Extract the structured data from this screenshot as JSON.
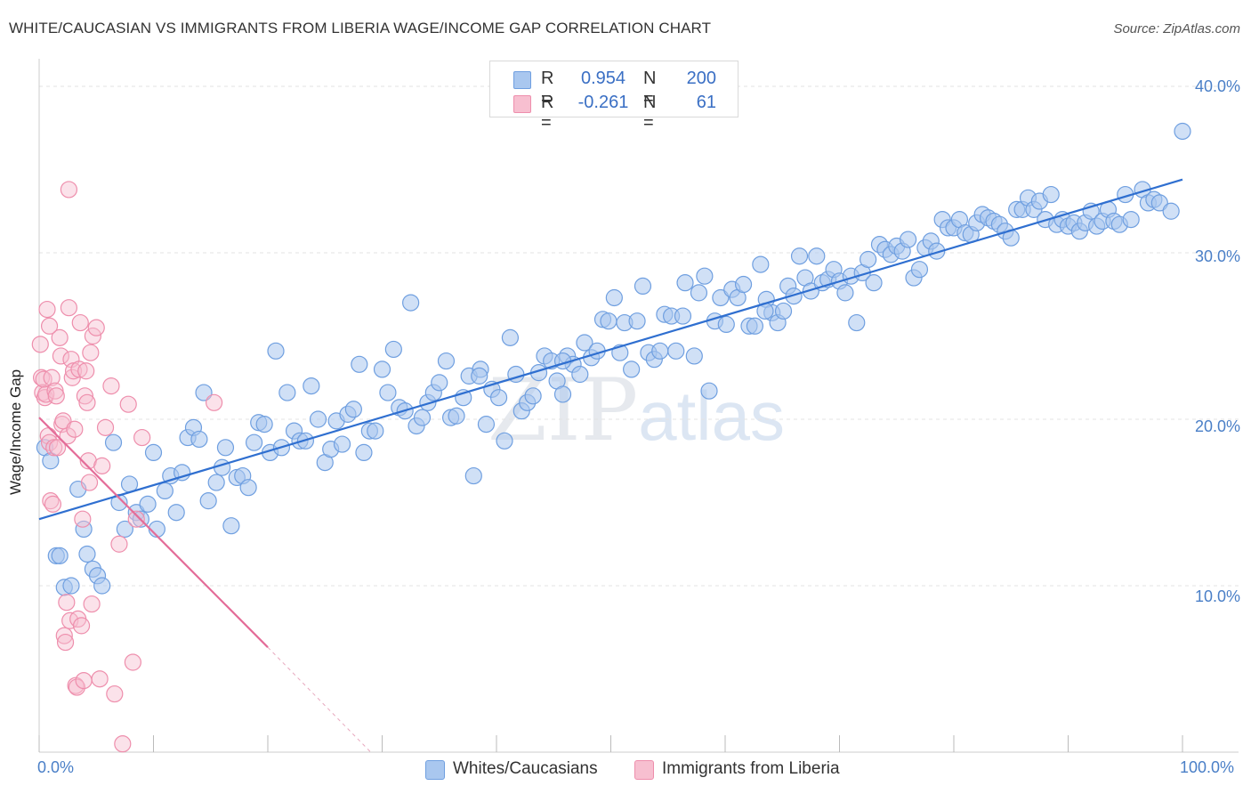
{
  "title": "WHITE/CAUCASIAN VS IMMIGRANTS FROM LIBERIA WAGE/INCOME GAP CORRELATION CHART",
  "source": "Source: ZipAtlas.com",
  "watermark": {
    "zip": "ZIP",
    "atlas": "atlas"
  },
  "legend": {
    "rows": [
      {
        "r_label": "R =",
        "r_value": "0.954",
        "n_label": "N =",
        "n_value": "200",
        "fill": "#a9c7ef",
        "stroke": "#6f9fe0",
        "text_color": "#3a6fc4"
      },
      {
        "r_label": "R =",
        "r_value": "-0.261",
        "n_label": "N =",
        "n_value": "61",
        "fill": "#f7bfd0",
        "stroke": "#ee8eac",
        "text_color": "#3a6fc4"
      }
    ]
  },
  "bottom_legend": [
    {
      "label": "Whites/Caucasians",
      "fill": "#a9c7ef",
      "stroke": "#6f9fe0"
    },
    {
      "label": "Immigrants from Liberia",
      "fill": "#f7bfd0",
      "stroke": "#ee8eac"
    }
  ],
  "axes": {
    "y_label": "Wage/Income Gap",
    "x_ticks": [
      "0.0%",
      "100.0%"
    ],
    "y_ticks": [
      "40.0%",
      "30.0%",
      "20.0%",
      "10.0%"
    ]
  },
  "colors": {
    "blue_line": "#2f6fd0",
    "pink_line": "#e46c98",
    "blue_dot": "#a9c7ef",
    "pink_dot": "#f7bfd0",
    "grid": "#e3e3e3"
  },
  "chart_data": {
    "type": "scatter",
    "title": "WHITE/CAUCASIAN VS IMMIGRANTS FROM LIBERIA WAGE/INCOME GAP CORRELATION CHART",
    "xlabel": "",
    "ylabel": "Wage/Income Gap",
    "xlim": [
      0,
      100
    ],
    "ylim": [
      0,
      40
    ],
    "y_gridlines": [
      10,
      20,
      30,
      40
    ],
    "series": [
      {
        "name": "Whites/Caucasians",
        "r": 0.954,
        "n": 200,
        "trend": {
          "x0": 0,
          "y0": 14.0,
          "x1": 100,
          "y1": 34.4
        },
        "points": [
          [
            0.5,
            18.3
          ],
          [
            1.0,
            17.5
          ],
          [
            1.5,
            11.8
          ],
          [
            1.8,
            11.8
          ],
          [
            2.2,
            9.9
          ],
          [
            2.8,
            10.0
          ],
          [
            3.4,
            15.8
          ],
          [
            3.9,
            13.4
          ],
          [
            4.2,
            11.9
          ],
          [
            4.7,
            11.0
          ],
          [
            5.1,
            10.6
          ],
          [
            5.5,
            10.0
          ],
          [
            6.5,
            18.6
          ],
          [
            7.0,
            15.0
          ],
          [
            7.5,
            13.4
          ],
          [
            7.9,
            16.1
          ],
          [
            8.5,
            14.4
          ],
          [
            8.9,
            14.0
          ],
          [
            9.5,
            14.9
          ],
          [
            10.0,
            18.0
          ],
          [
            10.3,
            13.4
          ],
          [
            11.0,
            15.7
          ],
          [
            11.5,
            16.6
          ],
          [
            12.0,
            14.4
          ],
          [
            12.5,
            16.8
          ],
          [
            13.0,
            18.9
          ],
          [
            13.5,
            19.5
          ],
          [
            14.0,
            18.8
          ],
          [
            14.4,
            21.6
          ],
          [
            14.8,
            15.1
          ],
          [
            15.5,
            16.2
          ],
          [
            16.0,
            17.1
          ],
          [
            16.3,
            18.3
          ],
          [
            16.8,
            13.6
          ],
          [
            17.3,
            16.5
          ],
          [
            17.8,
            16.6
          ],
          [
            18.3,
            15.9
          ],
          [
            18.8,
            18.6
          ],
          [
            19.2,
            19.8
          ],
          [
            19.7,
            19.7
          ],
          [
            20.2,
            18.0
          ],
          [
            20.7,
            24.1
          ],
          [
            21.2,
            18.3
          ],
          [
            21.7,
            21.6
          ],
          [
            22.3,
            19.3
          ],
          [
            22.8,
            18.7
          ],
          [
            23.3,
            18.7
          ],
          [
            23.8,
            22.0
          ],
          [
            24.4,
            20.0
          ],
          [
            25.0,
            17.4
          ],
          [
            25.5,
            18.2
          ],
          [
            26.0,
            19.9
          ],
          [
            26.5,
            18.5
          ],
          [
            27.0,
            20.3
          ],
          [
            27.5,
            20.6
          ],
          [
            28.0,
            23.3
          ],
          [
            28.4,
            18.0
          ],
          [
            28.9,
            19.3
          ],
          [
            29.4,
            19.3
          ],
          [
            30.0,
            23.0
          ],
          [
            30.5,
            21.6
          ],
          [
            31.0,
            24.2
          ],
          [
            31.5,
            20.7
          ],
          [
            32.0,
            20.5
          ],
          [
            32.5,
            27.0
          ],
          [
            33.0,
            19.6
          ],
          [
            33.5,
            20.1
          ],
          [
            34.0,
            21.0
          ],
          [
            34.5,
            21.6
          ],
          [
            35.0,
            22.2
          ],
          [
            35.6,
            23.5
          ],
          [
            36.0,
            20.1
          ],
          [
            36.5,
            20.2
          ],
          [
            37.1,
            21.3
          ],
          [
            37.6,
            22.6
          ],
          [
            38.0,
            16.6
          ],
          [
            38.6,
            23.0
          ],
          [
            39.1,
            19.7
          ],
          [
            39.6,
            21.8
          ],
          [
            40.2,
            21.3
          ],
          [
            40.7,
            18.7
          ],
          [
            41.2,
            24.9
          ],
          [
            41.7,
            22.7
          ],
          [
            42.2,
            20.5
          ],
          [
            42.7,
            21.0
          ],
          [
            43.2,
            21.4
          ],
          [
            43.7,
            22.8
          ],
          [
            44.2,
            23.8
          ],
          [
            44.8,
            23.5
          ],
          [
            45.3,
            22.3
          ],
          [
            45.8,
            21.5
          ],
          [
            46.2,
            23.8
          ],
          [
            46.7,
            23.3
          ],
          [
            47.3,
            22.7
          ],
          [
            47.7,
            24.6
          ],
          [
            48.3,
            23.7
          ],
          [
            48.8,
            24.1
          ],
          [
            49.3,
            26.0
          ],
          [
            49.8,
            25.9
          ],
          [
            50.3,
            27.3
          ],
          [
            50.8,
            24.0
          ],
          [
            51.2,
            25.8
          ],
          [
            51.8,
            23.0
          ],
          [
            52.3,
            25.9
          ],
          [
            52.8,
            28.0
          ],
          [
            53.3,
            24.0
          ],
          [
            53.8,
            23.6
          ],
          [
            54.3,
            24.1
          ],
          [
            54.7,
            26.3
          ],
          [
            55.3,
            26.2
          ],
          [
            55.7,
            24.1
          ],
          [
            56.5,
            28.2
          ],
          [
            57.3,
            23.8
          ],
          [
            57.7,
            27.6
          ],
          [
            58.2,
            28.6
          ],
          [
            58.6,
            21.7
          ],
          [
            59.1,
            25.9
          ],
          [
            59.6,
            27.3
          ],
          [
            60.1,
            25.7
          ],
          [
            60.6,
            27.8
          ],
          [
            61.1,
            27.3
          ],
          [
            61.6,
            28.1
          ],
          [
            62.1,
            25.6
          ],
          [
            62.6,
            25.6
          ],
          [
            63.1,
            29.3
          ],
          [
            63.6,
            27.2
          ],
          [
            64.1,
            26.4
          ],
          [
            64.6,
            25.8
          ],
          [
            65.1,
            26.5
          ],
          [
            65.5,
            28.0
          ],
          [
            66.0,
            27.4
          ],
          [
            66.5,
            29.8
          ],
          [
            67.0,
            28.5
          ],
          [
            67.5,
            27.7
          ],
          [
            68.0,
            29.8
          ],
          [
            68.5,
            28.2
          ],
          [
            69.0,
            28.4
          ],
          [
            69.5,
            29.0
          ],
          [
            70.0,
            28.3
          ],
          [
            70.5,
            27.6
          ],
          [
            71.0,
            28.6
          ],
          [
            71.5,
            25.8
          ],
          [
            72.0,
            28.8
          ],
          [
            72.5,
            29.6
          ],
          [
            73.0,
            28.2
          ],
          [
            73.5,
            30.5
          ],
          [
            74.0,
            30.2
          ],
          [
            74.5,
            29.9
          ],
          [
            75.0,
            30.4
          ],
          [
            75.5,
            30.1
          ],
          [
            76.0,
            30.8
          ],
          [
            76.5,
            28.5
          ],
          [
            77.0,
            29.0
          ],
          [
            77.5,
            30.3
          ],
          [
            78.0,
            30.7
          ],
          [
            78.5,
            30.1
          ],
          [
            79.0,
            32.0
          ],
          [
            79.5,
            31.5
          ],
          [
            80.0,
            31.5
          ],
          [
            80.5,
            32.0
          ],
          [
            81.0,
            31.2
          ],
          [
            81.5,
            31.1
          ],
          [
            82.0,
            31.8
          ],
          [
            82.5,
            32.3
          ],
          [
            83.0,
            32.1
          ],
          [
            83.5,
            31.9
          ],
          [
            84.0,
            31.7
          ],
          [
            84.5,
            31.3
          ],
          [
            85.0,
            30.9
          ],
          [
            85.5,
            32.6
          ],
          [
            86.0,
            32.6
          ],
          [
            86.5,
            33.3
          ],
          [
            87.0,
            32.6
          ],
          [
            87.5,
            33.1
          ],
          [
            88.0,
            32.0
          ],
          [
            88.5,
            33.5
          ],
          [
            89.0,
            31.7
          ],
          [
            89.5,
            32.0
          ],
          [
            90.0,
            31.6
          ],
          [
            90.5,
            31.8
          ],
          [
            91.0,
            31.3
          ],
          [
            91.5,
            31.8
          ],
          [
            92.0,
            32.5
          ],
          [
            92.5,
            31.6
          ],
          [
            93.0,
            31.9
          ],
          [
            93.5,
            32.6
          ],
          [
            94.0,
            31.9
          ],
          [
            94.5,
            31.7
          ],
          [
            95.0,
            33.5
          ],
          [
            95.5,
            32.0
          ],
          [
            96.5,
            33.8
          ],
          [
            97.0,
            33.0
          ],
          [
            97.5,
            33.2
          ],
          [
            98.0,
            33.0
          ],
          [
            99.0,
            32.5
          ],
          [
            100.0,
            37.3
          ],
          [
            56.3,
            26.2
          ],
          [
            45.8,
            23.5
          ],
          [
            38.5,
            22.6
          ],
          [
            63.5,
            26.5
          ]
        ]
      },
      {
        "name": "Immigrants from Liberia",
        "r": -0.261,
        "n": 61,
        "trend": {
          "x0": 0,
          "y0": 20.1,
          "x1": 20,
          "y1": 6.3,
          "dash_to_x": 29,
          "dash_to_y": 0
        },
        "points": [
          [
            0.1,
            24.5
          ],
          [
            0.2,
            22.5
          ],
          [
            0.3,
            21.6
          ],
          [
            0.4,
            22.4
          ],
          [
            0.5,
            21.3
          ],
          [
            0.6,
            21.5
          ],
          [
            0.7,
            26.6
          ],
          [
            0.8,
            19.0
          ],
          [
            0.9,
            18.6
          ],
          [
            1.0,
            15.1
          ],
          [
            1.1,
            22.5
          ],
          [
            1.2,
            14.9
          ],
          [
            1.3,
            18.3
          ],
          [
            1.4,
            21.7
          ],
          [
            1.5,
            21.4
          ],
          [
            1.6,
            18.3
          ],
          [
            1.8,
            24.9
          ],
          [
            1.9,
            23.8
          ],
          [
            2.0,
            19.7
          ],
          [
            2.1,
            19.9
          ],
          [
            2.2,
            7.0
          ],
          [
            2.3,
            6.6
          ],
          [
            2.4,
            9.0
          ],
          [
            2.5,
            19.0
          ],
          [
            2.6,
            33.8
          ],
          [
            2.7,
            7.9
          ],
          [
            2.8,
            23.6
          ],
          [
            2.9,
            22.5
          ],
          [
            3.0,
            22.9
          ],
          [
            3.1,
            19.4
          ],
          [
            3.2,
            4.0
          ],
          [
            3.3,
            3.9
          ],
          [
            3.4,
            8.0
          ],
          [
            3.5,
            23.0
          ],
          [
            3.6,
            25.8
          ],
          [
            3.7,
            7.6
          ],
          [
            3.8,
            14.0
          ],
          [
            3.9,
            4.3
          ],
          [
            4.0,
            21.4
          ],
          [
            4.1,
            22.9
          ],
          [
            4.2,
            21.0
          ],
          [
            4.3,
            17.5
          ],
          [
            4.4,
            16.2
          ],
          [
            4.5,
            24.0
          ],
          [
            4.6,
            8.9
          ],
          [
            4.7,
            25.0
          ],
          [
            5.0,
            25.5
          ],
          [
            5.3,
            4.4
          ],
          [
            5.5,
            17.2
          ],
          [
            5.8,
            19.5
          ],
          [
            6.3,
            22.0
          ],
          [
            6.6,
            3.5
          ],
          [
            7.0,
            12.5
          ],
          [
            7.3,
            0.5
          ],
          [
            7.8,
            20.9
          ],
          [
            8.2,
            5.4
          ],
          [
            8.5,
            14.0
          ],
          [
            9.0,
            18.9
          ],
          [
            15.3,
            21.0
          ],
          [
            0.9,
            25.6
          ],
          [
            2.6,
            26.7
          ]
        ]
      }
    ]
  }
}
